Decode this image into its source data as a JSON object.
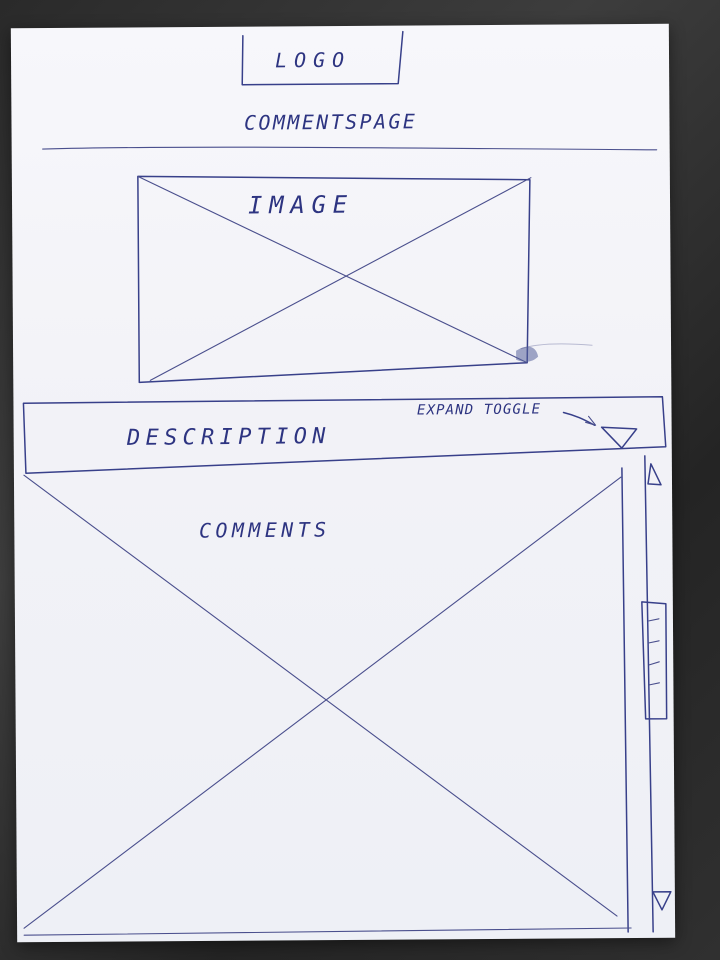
{
  "header": {
    "logo_text": "LOGO",
    "page_title": "COMMENTSPAGE"
  },
  "media": {
    "image_placeholder_label": "IMAGE"
  },
  "description": {
    "label": "DESCRIPTION",
    "expand_toggle_label": "EXPAND TOGGLE"
  },
  "comments": {
    "label": "COMMENTS"
  },
  "icons": {
    "expand_toggle": "triangle-down-icon",
    "scroll_up": "triangle-up-icon",
    "scroll_down": "triangle-down-icon"
  },
  "colors": {
    "ink": "#38408a",
    "paper": "#f4f4f9",
    "background": "#2d2d2d"
  }
}
